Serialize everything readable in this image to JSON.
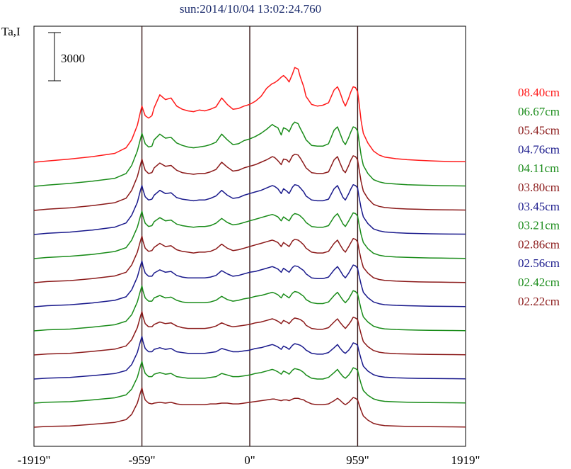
{
  "chart_data": {
    "type": "line",
    "title": "sun:2014/10/04 13:02:24.760",
    "ylabel": "Ta,I",
    "xlabel": "",
    "scale_bar": {
      "label": "3000",
      "value": 3000
    },
    "xlim": [
      -1919,
      1919
    ],
    "x_ticks": [
      {
        "value": -1919,
        "label": "-1919\""
      },
      {
        "value": -959,
        "label": "-959\""
      },
      {
        "value": 0,
        "label": "0\""
      },
      {
        "value": 959,
        "label": "959\""
      },
      {
        "value": 1919,
        "label": "1919\""
      }
    ],
    "vertical_lines": [
      -959,
      0,
      959
    ],
    "grid": false,
    "legend_position": "right",
    "x": [
      -1919,
      -1800,
      -1600,
      -1400,
      -1200,
      -1100,
      -1050,
      -1000,
      -970,
      -959,
      -950,
      -930,
      -900,
      -870,
      -850,
      -800,
      -750,
      -700,
      -650,
      -600,
      -550,
      -500,
      -450,
      -400,
      -350,
      -300,
      -250,
      -200,
      -150,
      -100,
      -50,
      0,
      50,
      100,
      150,
      200,
      220,
      250,
      280,
      300,
      330,
      350,
      380,
      400,
      430,
      450,
      480,
      500,
      550,
      600,
      650,
      700,
      750,
      780,
      800,
      830,
      850,
      880,
      900,
      920,
      940,
      959,
      970,
      990,
      1010,
      1050,
      1100,
      1150,
      1200,
      1300,
      1400,
      1500,
      1600,
      1700,
      1800,
      1919
    ],
    "series": [
      {
        "name": "08.40cm",
        "color": "#ff1a1a",
        "values": [
          0,
          80,
          200,
          350,
          550,
          900,
          1400,
          2300,
          3200,
          3500,
          3300,
          2900,
          2750,
          2900,
          3400,
          4200,
          3900,
          4000,
          3500,
          3300,
          3200,
          3150,
          3250,
          3200,
          3300,
          3450,
          4000,
          3600,
          3300,
          3350,
          3500,
          3600,
          3800,
          4100,
          4600,
          4900,
          4950,
          5100,
          5300,
          5400,
          5200,
          5000,
          5500,
          5900,
          5800,
          5300,
          4700,
          4100,
          3600,
          3500,
          3550,
          3700,
          4500,
          4700,
          4400,
          3800,
          3500,
          4000,
          4400,
          4700,
          4650,
          4400,
          3800,
          2600,
          1800,
          1200,
          700,
          450,
          320,
          220,
          160,
          120,
          90,
          60,
          40,
          30
        ]
      },
      {
        "name": "06.67cm",
        "color": "#1a8c1a",
        "values": [
          0,
          80,
          180,
          320,
          500,
          800,
          1300,
          2200,
          3000,
          3300,
          3100,
          2650,
          2450,
          2500,
          2900,
          3250,
          3000,
          3050,
          2700,
          2550,
          2450,
          2400,
          2450,
          2500,
          2600,
          2750,
          3250,
          2900,
          2600,
          2650,
          2850,
          2950,
          3100,
          3300,
          3550,
          3850,
          3750,
          3650,
          3200,
          3650,
          3550,
          3400,
          3850,
          4000,
          3900,
          3600,
          3200,
          2900,
          2550,
          2500,
          2500,
          2650,
          3500,
          3700,
          3350,
          2800,
          2600,
          3050,
          3400,
          3700,
          3650,
          3450,
          2900,
          1950,
          1300,
          800,
          420,
          280,
          200,
          140,
          100,
          80,
          60,
          40,
          30,
          20
        ]
      },
      {
        "name": "05.45cm",
        "color": "#8b1a1a",
        "values": [
          0,
          80,
          160,
          300,
          480,
          760,
          1250,
          2100,
          2900,
          3200,
          2950,
          2500,
          2300,
          2350,
          2650,
          2950,
          2750,
          2800,
          2500,
          2350,
          2300,
          2250,
          2300,
          2300,
          2400,
          2550,
          3000,
          2700,
          2450,
          2500,
          2650,
          2750,
          2850,
          3000,
          3150,
          3350,
          3300,
          3100,
          2850,
          3200,
          3150,
          3000,
          3400,
          3500,
          3450,
          3250,
          2900,
          2650,
          2350,
          2300,
          2300,
          2400,
          3150,
          3350,
          3000,
          2500,
          2350,
          2800,
          3150,
          3400,
          3350,
          3150,
          2650,
          1800,
          1200,
          740,
          380,
          250,
          180,
          120,
          90,
          70,
          50,
          40,
          30,
          20
        ]
      },
      {
        "name": "04.76cm",
        "color": "#1a1a8c",
        "values": [
          0,
          75,
          150,
          280,
          460,
          720,
          1200,
          2000,
          2800,
          3050,
          2800,
          2350,
          2150,
          2200,
          2450,
          2750,
          2550,
          2600,
          2300,
          2200,
          2150,
          2100,
          2150,
          2150,
          2250,
          2400,
          2750,
          2450,
          2250,
          2300,
          2450,
          2550,
          2650,
          2750,
          2900,
          3050,
          3000,
          2850,
          2550,
          2850,
          2700,
          2550,
          2950,
          3100,
          3050,
          2900,
          2650,
          2400,
          2150,
          2100,
          2100,
          2200,
          2850,
          3050,
          2750,
          2300,
          2150,
          2550,
          2850,
          3100,
          3050,
          2900,
          2400,
          1650,
          1100,
          680,
          350,
          230,
          160,
          110,
          80,
          60,
          45,
          35,
          25,
          20
        ]
      },
      {
        "name": "04.11cm",
        "color": "#1a8c1a",
        "values": [
          0,
          70,
          140,
          260,
          440,
          680,
          1150,
          1950,
          2700,
          2950,
          2650,
          2200,
          2000,
          2050,
          2300,
          2550,
          2350,
          2400,
          2150,
          2050,
          2000,
          1950,
          2000,
          2000,
          2050,
          2200,
          2500,
          2250,
          2100,
          2150,
          2250,
          2350,
          2450,
          2550,
          2650,
          2750,
          2700,
          2600,
          2350,
          2600,
          2450,
          2350,
          2700,
          2800,
          2750,
          2650,
          2450,
          2250,
          2000,
          1950,
          1950,
          2050,
          2600,
          2800,
          2550,
          2150,
          2000,
          2350,
          2600,
          2850,
          2800,
          2650,
          2200,
          1500,
          1000,
          620,
          330,
          210,
          150,
          100,
          75,
          55,
          40,
          30,
          20,
          15
        ]
      },
      {
        "name": "03.80cm",
        "color": "#8b1a1a",
        "values": [
          0,
          70,
          130,
          250,
          420,
          650,
          1100,
          1900,
          2650,
          2900,
          2600,
          2150,
          1950,
          2000,
          2200,
          2450,
          2250,
          2300,
          2050,
          1950,
          1900,
          1850,
          1900,
          1900,
          1950,
          2100,
          2400,
          2150,
          2000,
          2050,
          2150,
          2250,
          2350,
          2450,
          2550,
          2650,
          2600,
          2500,
          2250,
          2500,
          2350,
          2250,
          2600,
          2700,
          2650,
          2550,
          2350,
          2150,
          1900,
          1850,
          1850,
          1950,
          2450,
          2650,
          2400,
          2050,
          1900,
          2250,
          2500,
          2750,
          2700,
          2550,
          2100,
          1450,
          950,
          600,
          310,
          200,
          140,
          95,
          70,
          50,
          40,
          30,
          20,
          15
        ]
      },
      {
        "name": "03.45cm",
        "color": "#1a1a8c",
        "values": [
          0,
          65,
          120,
          240,
          400,
          620,
          1050,
          1850,
          2600,
          2850,
          2550,
          2100,
          1900,
          1900,
          2100,
          2300,
          2150,
          2200,
          1950,
          1850,
          1800,
          1800,
          1800,
          1800,
          1850,
          1950,
          2250,
          2050,
          1900,
          1950,
          2050,
          2150,
          2200,
          2300,
          2400,
          2500,
          2450,
          2350,
          2150,
          2400,
          2250,
          2150,
          2450,
          2550,
          2500,
          2400,
          2250,
          2050,
          1800,
          1750,
          1750,
          1850,
          2300,
          2500,
          2300,
          1950,
          1800,
          2100,
          2350,
          2600,
          2550,
          2400,
          2000,
          1400,
          900,
          570,
          300,
          190,
          130,
          90,
          65,
          50,
          35,
          25,
          20,
          15
        ]
      },
      {
        "name": "03.21cm",
        "color": "#1a8c1a",
        "values": [
          0,
          65,
          110,
          230,
          380,
          600,
          1000,
          1800,
          2550,
          2800,
          2500,
          2050,
          1850,
          1850,
          2050,
          2200,
          2050,
          2100,
          1900,
          1800,
          1750,
          1750,
          1750,
          1750,
          1800,
          1900,
          2150,
          1950,
          1850,
          1900,
          2000,
          2050,
          2150,
          2200,
          2300,
          2400,
          2350,
          2250,
          2050,
          2300,
          2150,
          2050,
          2350,
          2450,
          2400,
          2300,
          2150,
          1950,
          1750,
          1700,
          1700,
          1800,
          2200,
          2400,
          2200,
          1900,
          1750,
          2000,
          2250,
          2500,
          2450,
          2300,
          1950,
          1350,
          870,
          550,
          290,
          180,
          125,
          85,
          60,
          45,
          35,
          25,
          20,
          15
        ]
      },
      {
        "name": "02.86cm",
        "color": "#8b1a1a",
        "values": [
          0,
          60,
          100,
          220,
          360,
          560,
          950,
          1700,
          2450,
          2700,
          2400,
          1950,
          1750,
          1750,
          1900,
          2050,
          1950,
          2000,
          1800,
          1700,
          1650,
          1650,
          1650,
          1650,
          1700,
          1800,
          2000,
          1850,
          1750,
          1800,
          1850,
          1900,
          2000,
          2050,
          2150,
          2250,
          2200,
          2100,
          1950,
          2150,
          2050,
          1950,
          2200,
          2300,
          2250,
          2200,
          2050,
          1850,
          1650,
          1600,
          1600,
          1700,
          2050,
          2250,
          2050,
          1800,
          1650,
          1900,
          2100,
          2350,
          2300,
          2200,
          1850,
          1300,
          830,
          520,
          280,
          170,
          120,
          80,
          60,
          45,
          35,
          25,
          20,
          15
        ]
      },
      {
        "name": "02.56cm",
        "color": "#1a1a8c",
        "values": [
          0,
          55,
          95,
          210,
          340,
          530,
          900,
          1650,
          2400,
          2650,
          2350,
          1900,
          1700,
          1700,
          1850,
          1950,
          1850,
          1900,
          1700,
          1650,
          1600,
          1600,
          1600,
          1600,
          1650,
          1700,
          1900,
          1800,
          1700,
          1700,
          1750,
          1800,
          1900,
          1950,
          2050,
          2150,
          2100,
          2000,
          1850,
          2050,
          1950,
          1850,
          2100,
          2200,
          2150,
          2100,
          1950,
          1800,
          1600,
          1550,
          1550,
          1650,
          1950,
          2150,
          1950,
          1700,
          1600,
          1800,
          2000,
          2250,
          2200,
          2100,
          1750,
          1250,
          800,
          500,
          270,
          165,
          115,
          75,
          55,
          40,
          30,
          25,
          20,
          15
        ]
      },
      {
        "name": "02.42cm",
        "color": "#1a8c1a",
        "values": [
          0,
          55,
          90,
          200,
          330,
          510,
          870,
          1600,
          2350,
          2600,
          2300,
          1850,
          1650,
          1650,
          1800,
          1900,
          1800,
          1850,
          1650,
          1600,
          1550,
          1550,
          1550,
          1550,
          1600,
          1650,
          1850,
          1750,
          1650,
          1650,
          1700,
          1750,
          1850,
          1900,
          2000,
          2100,
          2050,
          1950,
          1800,
          2000,
          1900,
          1800,
          2050,
          2150,
          2100,
          2050,
          1900,
          1750,
          1550,
          1500,
          1500,
          1600,
          1900,
          2100,
          1900,
          1650,
          1550,
          1750,
          1950,
          2200,
          2150,
          2050,
          1700,
          1200,
          780,
          490,
          265,
          160,
          110,
          75,
          55,
          40,
          30,
          25,
          20,
          15
        ]
      },
      {
        "name": "02.22cm",
        "color": "#8b1a1a",
        "values": [
          0,
          50,
          80,
          180,
          300,
          470,
          800,
          1500,
          2200,
          2450,
          2150,
          1700,
          1500,
          1450,
          1500,
          1550,
          1500,
          1550,
          1450,
          1400,
          1400,
          1400,
          1400,
          1400,
          1450,
          1450,
          1500,
          1500,
          1450,
          1450,
          1500,
          1550,
          1600,
          1650,
          1700,
          1750,
          1750,
          1700,
          1650,
          1700,
          1700,
          1650,
          1750,
          1800,
          1800,
          1750,
          1700,
          1600,
          1450,
          1400,
          1400,
          1450,
          1650,
          1800,
          1700,
          1500,
          1400,
          1550,
          1700,
          1850,
          1800,
          1700,
          1450,
          1050,
          700,
          440,
          240,
          150,
          100,
          70,
          50,
          40,
          30,
          25,
          20,
          15
        ]
      }
    ]
  }
}
